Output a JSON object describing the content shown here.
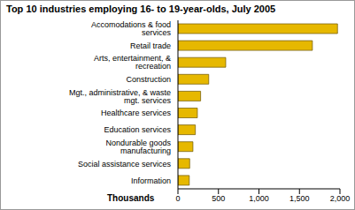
{
  "chart_data": {
    "type": "bar",
    "title": "Top 10 industries employing 16- to 19-year-olds, July 2005",
    "x_label": "Thousands",
    "orientation": "horizontal",
    "categories": [
      "Accomodations & food services",
      "Retail trade",
      "Arts, entertainment, & recreation",
      "Construction",
      "Mgt., administrative, & waste mgt. services",
      "Healthcare services",
      "Education services",
      "Nondurable goods manufacturing",
      "Social assistance services",
      "Information"
    ],
    "values": [
      1970,
      1660,
      590,
      380,
      280,
      240,
      215,
      185,
      145,
      140
    ],
    "color": "#e6b800",
    "xlim": [
      0,
      2000
    ],
    "xticks": [
      0,
      500,
      {
        "value": 1000,
        "label": "1,000"
      },
      {
        "value": 1500,
        "label": "1,500"
      },
      {
        "value": 2000,
        "label": "2,000"
      }
    ],
    "grid": false
  }
}
